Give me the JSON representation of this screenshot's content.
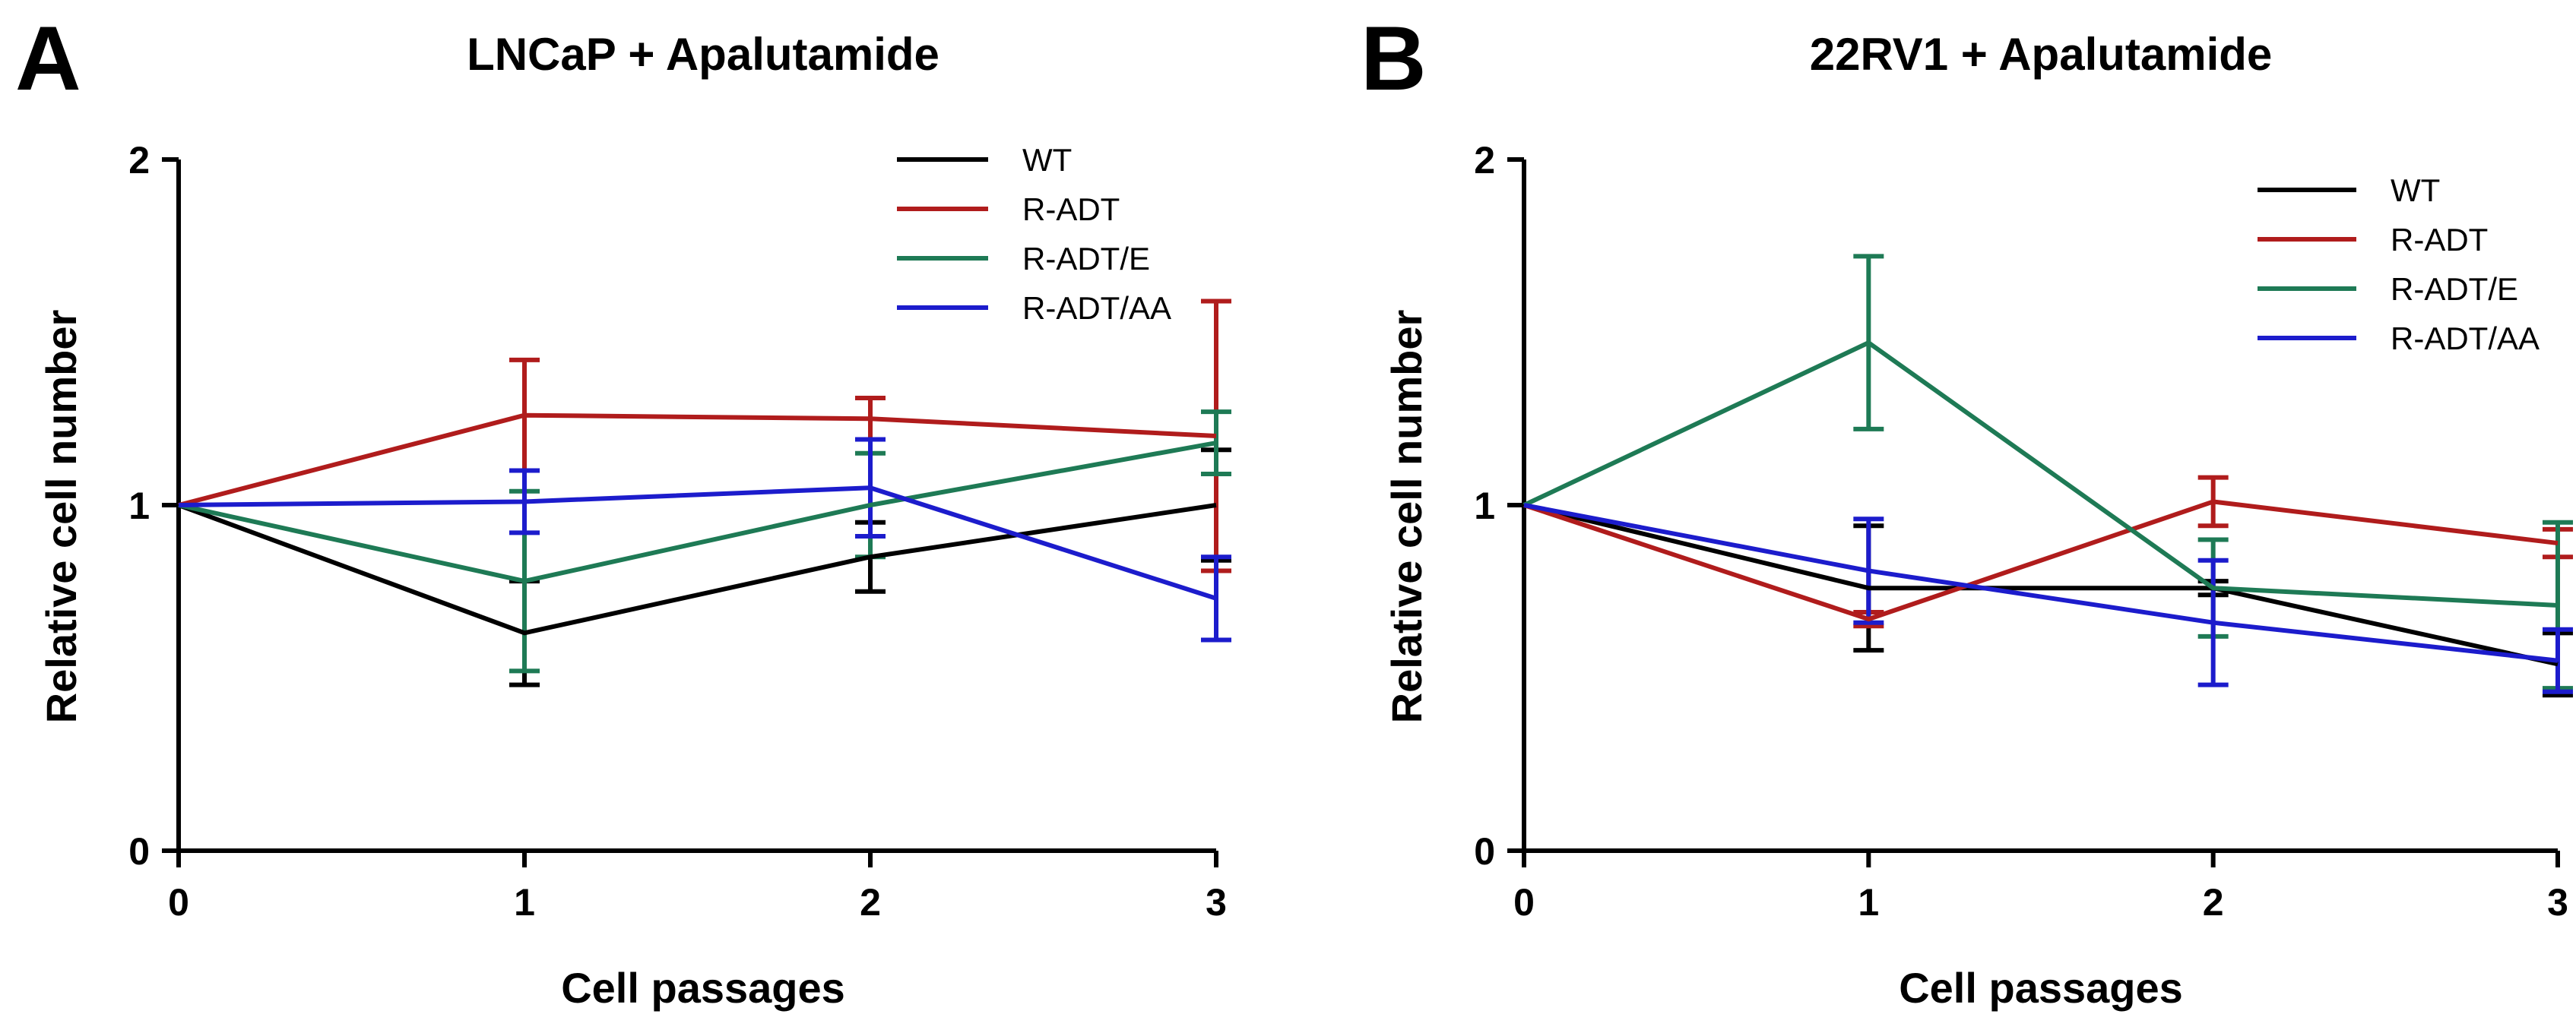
{
  "figure": {
    "panels": [
      {
        "letter": "A"
      },
      {
        "letter": "B"
      }
    ]
  },
  "chart_data": [
    {
      "type": "line",
      "title": "LNCaP + Apalutamide",
      "xlabel": "Cell passages",
      "ylabel": "Relative cell number",
      "x": [
        0,
        1,
        2,
        3
      ],
      "x_ticks": [
        "0",
        "1",
        "2",
        "3"
      ],
      "y_ticks": [
        "0",
        "1",
        "2"
      ],
      "xlim": [
        0,
        3
      ],
      "ylim": [
        0,
        2
      ],
      "legend_position": "top-right",
      "grid": false,
      "series": [
        {
          "name": "WT",
          "color": "#000000",
          "values": [
            1.0,
            0.63,
            0.85,
            1.0
          ],
          "error": [
            0,
            0.15,
            0.1,
            0.16
          ]
        },
        {
          "name": "R-ADT",
          "color": "#b01c1c",
          "values": [
            1.0,
            1.26,
            1.25,
            1.2
          ],
          "error": [
            0,
            0.16,
            0.06,
            0.39
          ]
        },
        {
          "name": "R-ADT/E",
          "color": "#1e7a55",
          "values": [
            1.0,
            0.78,
            1.0,
            1.18
          ],
          "error": [
            0,
            0.26,
            0.15,
            0.09
          ]
        },
        {
          "name": "R-ADT/AA",
          "color": "#1c1ccc",
          "values": [
            1.0,
            1.01,
            1.05,
            0.73
          ],
          "error": [
            0,
            0.09,
            0.14,
            0.12
          ]
        }
      ]
    },
    {
      "type": "line",
      "title": "22RV1 + Apalutamide",
      "xlabel": "Cell passages",
      "ylabel": "Relative cell number",
      "x": [
        0,
        1,
        2,
        3
      ],
      "x_ticks": [
        "0",
        "1",
        "2",
        "3"
      ],
      "y_ticks": [
        "0",
        "1",
        "2"
      ],
      "xlim": [
        0,
        3
      ],
      "ylim": [
        0,
        2
      ],
      "legend_position": "top-right",
      "grid": false,
      "series": [
        {
          "name": "WT",
          "color": "#000000",
          "values": [
            1.0,
            0.76,
            0.76,
            0.54
          ],
          "error": [
            0,
            0.18,
            0.02,
            0.09
          ]
        },
        {
          "name": "R-ADT",
          "color": "#b01c1c",
          "values": [
            1.0,
            0.67,
            1.01,
            0.89
          ],
          "error": [
            0,
            0.02,
            0.07,
            0.04
          ]
        },
        {
          "name": "R-ADT/E",
          "color": "#1e7a55",
          "values": [
            1.0,
            1.47,
            0.76,
            0.71
          ],
          "error": [
            0,
            0.25,
            0.14,
            0.24
          ]
        },
        {
          "name": "R-ADT/AA",
          "color": "#1c1ccc",
          "values": [
            1.0,
            0.81,
            0.66,
            0.55
          ],
          "error": [
            0,
            0.15,
            0.18,
            0.09
          ]
        }
      ]
    }
  ]
}
